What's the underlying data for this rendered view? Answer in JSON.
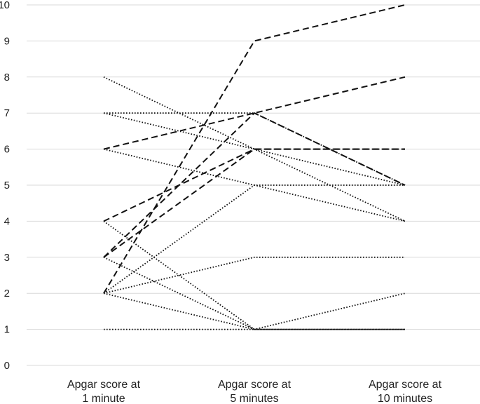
{
  "chart_data": {
    "type": "line",
    "title": "",
    "xlabel": "",
    "ylabel": "",
    "ylim": [
      0,
      10
    ],
    "yticks": [
      0,
      1,
      2,
      3,
      4,
      5,
      6,
      7,
      8,
      9,
      10
    ],
    "grid": true,
    "legend": "none",
    "categories": [
      [
        "Apgar score at",
        "1 minute"
      ],
      [
        "Apgar score at",
        "5 minutes"
      ],
      [
        "Apgar score at",
        "10 minutes"
      ]
    ],
    "series": [
      {
        "style": "dashed",
        "values": [
          2,
          9,
          10
        ]
      },
      {
        "style": "dashed",
        "values": [
          6,
          7,
          8
        ]
      },
      {
        "style": "dashed",
        "values": [
          3,
          7,
          5
        ]
      },
      {
        "style": "dashed",
        "values": [
          3,
          6,
          6
        ]
      },
      {
        "style": "dashed",
        "values": [
          4,
          6,
          6
        ]
      },
      {
        "style": "dotted",
        "values": [
          8,
          6,
          5
        ]
      },
      {
        "style": "dotted",
        "values": [
          7,
          7,
          5
        ]
      },
      {
        "style": "dotted",
        "values": [
          7,
          6,
          4
        ]
      },
      {
        "style": "dotted",
        "values": [
          6,
          5,
          5
        ]
      },
      {
        "style": "dotted",
        "values": [
          3,
          1,
          1
        ]
      },
      {
        "style": "dotted",
        "values": [
          4,
          1,
          1
        ]
      },
      {
        "style": "dotted",
        "values": [
          2,
          5,
          4
        ]
      },
      {
        "style": "dotted",
        "values": [
          2,
          3,
          3
        ]
      },
      {
        "style": "dotted",
        "values": [
          2,
          1,
          2
        ]
      },
      {
        "style": "dotted",
        "values": [
          1,
          1,
          1
        ]
      }
    ],
    "colors": {
      "line": "#111111",
      "grid": "#d9d9d9",
      "text": "#222222"
    }
  }
}
